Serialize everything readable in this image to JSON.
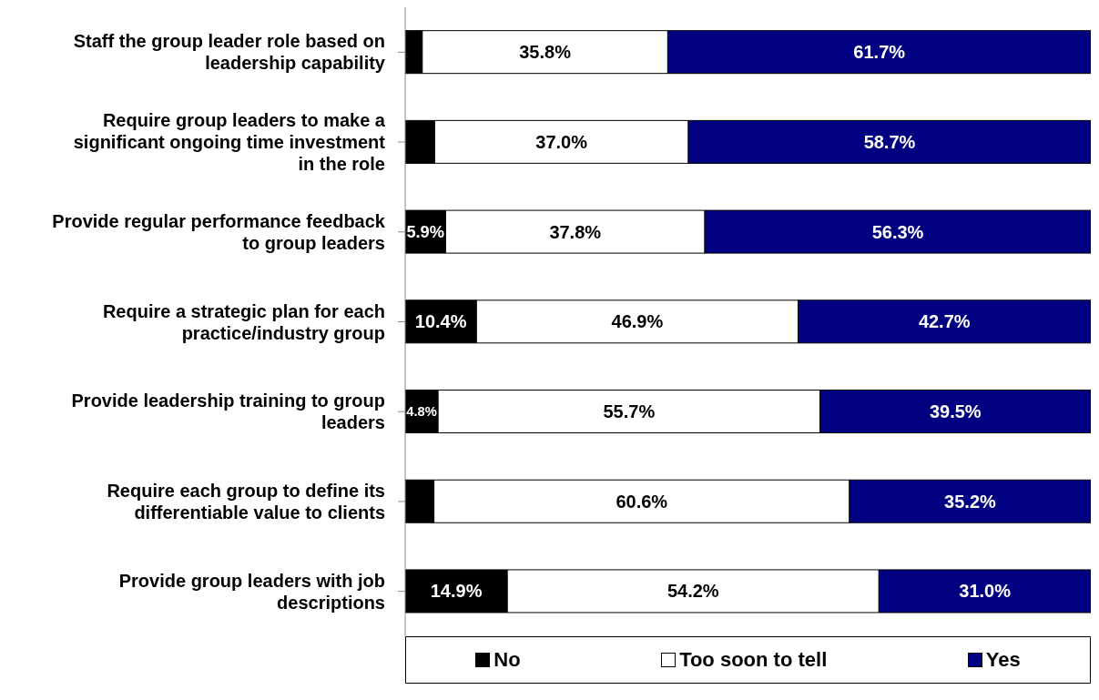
{
  "chart_data": {
    "type": "bar",
    "orientation": "horizontal",
    "stacked": true,
    "categories": [
      "Staff the group leader role based on leadership capability",
      "Require group leaders to make a significant ongoing time investment in the role",
      "Provide regular performance feedback to group leaders",
      "Require a strategic plan for each practice/industry group",
      "Provide leadership training to group leaders",
      "Require each group to define its differentiable value to clients",
      "Provide group leaders with job descriptions"
    ],
    "series": [
      {
        "name": "No",
        "color": "#000000",
        "values": [
          2.5,
          4.3,
          5.9,
          10.4,
          4.8,
          4.2,
          14.9
        ],
        "value_labels": [
          null,
          null,
          "5.9%",
          "10.4%",
          "4.8%",
          null,
          "14.9%"
        ]
      },
      {
        "name": "Too soon to tell",
        "color": "#ffffff",
        "values": [
          35.8,
          37.0,
          37.8,
          46.9,
          55.7,
          60.6,
          54.2
        ],
        "value_labels": [
          "35.8%",
          "37.0%",
          "37.8%",
          "46.9%",
          "55.7%",
          "60.6%",
          "54.2%"
        ]
      },
      {
        "name": "Yes",
        "color": "#000080",
        "values": [
          61.7,
          58.7,
          56.3,
          42.7,
          39.5,
          35.2,
          31.0
        ],
        "value_labels": [
          "61.7%",
          "58.7%",
          "56.3%",
          "42.7%",
          "39.5%",
          "35.2%",
          "31.0%"
        ]
      }
    ],
    "xlim": [
      0,
      100
    ],
    "tick_labels": "y",
    "legend": "bottom",
    "grid": false
  }
}
